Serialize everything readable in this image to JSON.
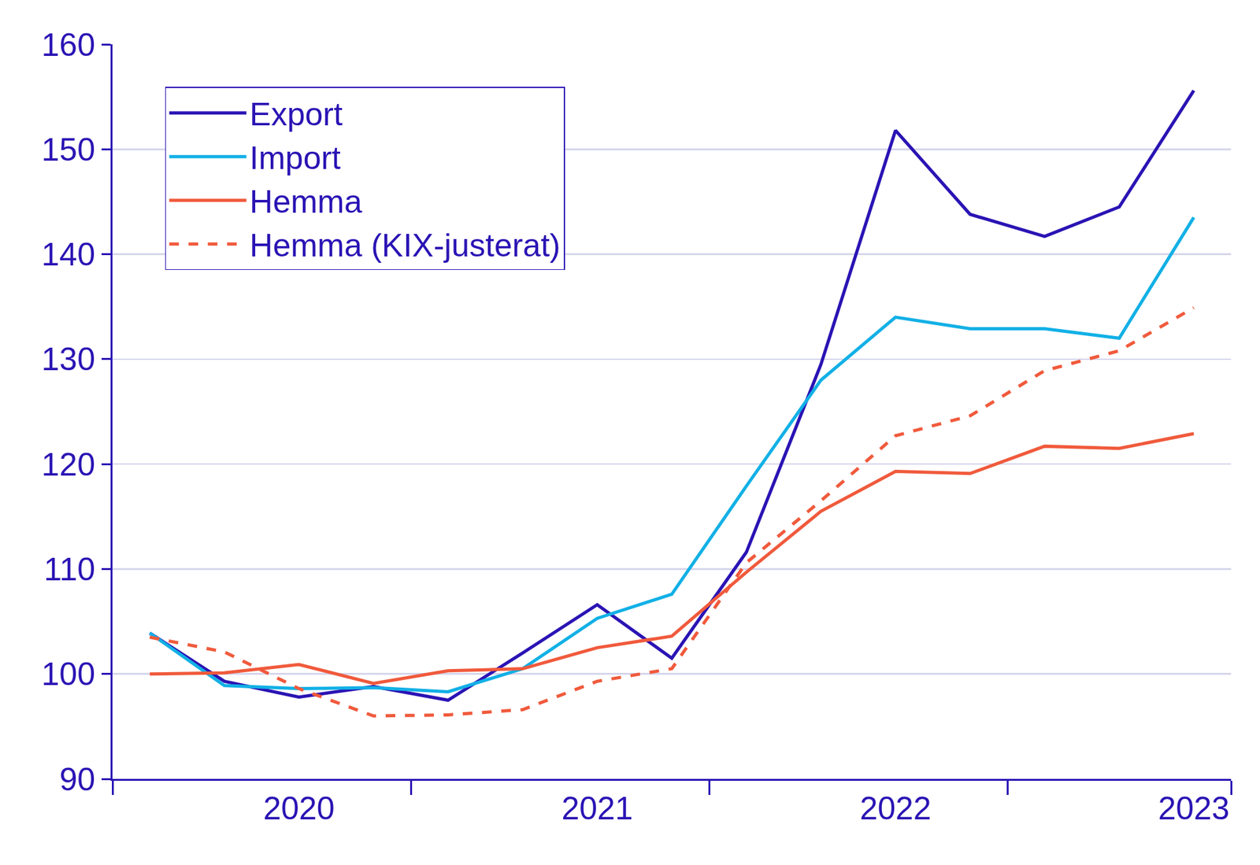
{
  "chart_data": {
    "type": "line",
    "categories": [
      null,
      null,
      "2020",
      null,
      null,
      null,
      "2021",
      null,
      null,
      null,
      "2022",
      null,
      null,
      null,
      "2023"
    ],
    "series": [
      {
        "name": "Export",
        "color": "#2a14b4",
        "line_style": "solid",
        "values": [
          103.9,
          99.3,
          97.8,
          98.8,
          97.5,
          102.0,
          106.6,
          101.5,
          111.6,
          129.5,
          151.8,
          143.8,
          141.7,
          144.5,
          155.6
        ]
      },
      {
        "name": "Import",
        "color": "#12b0e6",
        "line_style": "solid",
        "values": [
          103.9,
          98.9,
          98.6,
          98.7,
          98.3,
          100.5,
          105.3,
          107.6,
          117.9,
          128.0,
          134.0,
          132.9,
          132.9,
          132.0,
          143.5
        ]
      },
      {
        "name": "Hemma",
        "color": "#f05a3c",
        "line_style": "solid",
        "values": [
          100.0,
          100.1,
          100.9,
          99.1,
          100.3,
          100.5,
          102.5,
          103.6,
          109.7,
          115.5,
          119.3,
          119.1,
          121.7,
          121.5,
          122.9
        ]
      },
      {
        "name": "Hemma (KIX-justerat)",
        "color": "#f05a3c",
        "line_style": "dash",
        "values": [
          103.5,
          102.1,
          98.6,
          96.0,
          96.1,
          96.6,
          99.3,
          100.5,
          110.6,
          116.5,
          122.7,
          124.6,
          128.9,
          130.8,
          134.9
        ]
      }
    ],
    "ylim": [
      90,
      160
    ],
    "yticks": [
      90,
      100,
      110,
      120,
      130,
      140,
      150,
      160
    ],
    "grid": true,
    "legend": "upper left"
  }
}
